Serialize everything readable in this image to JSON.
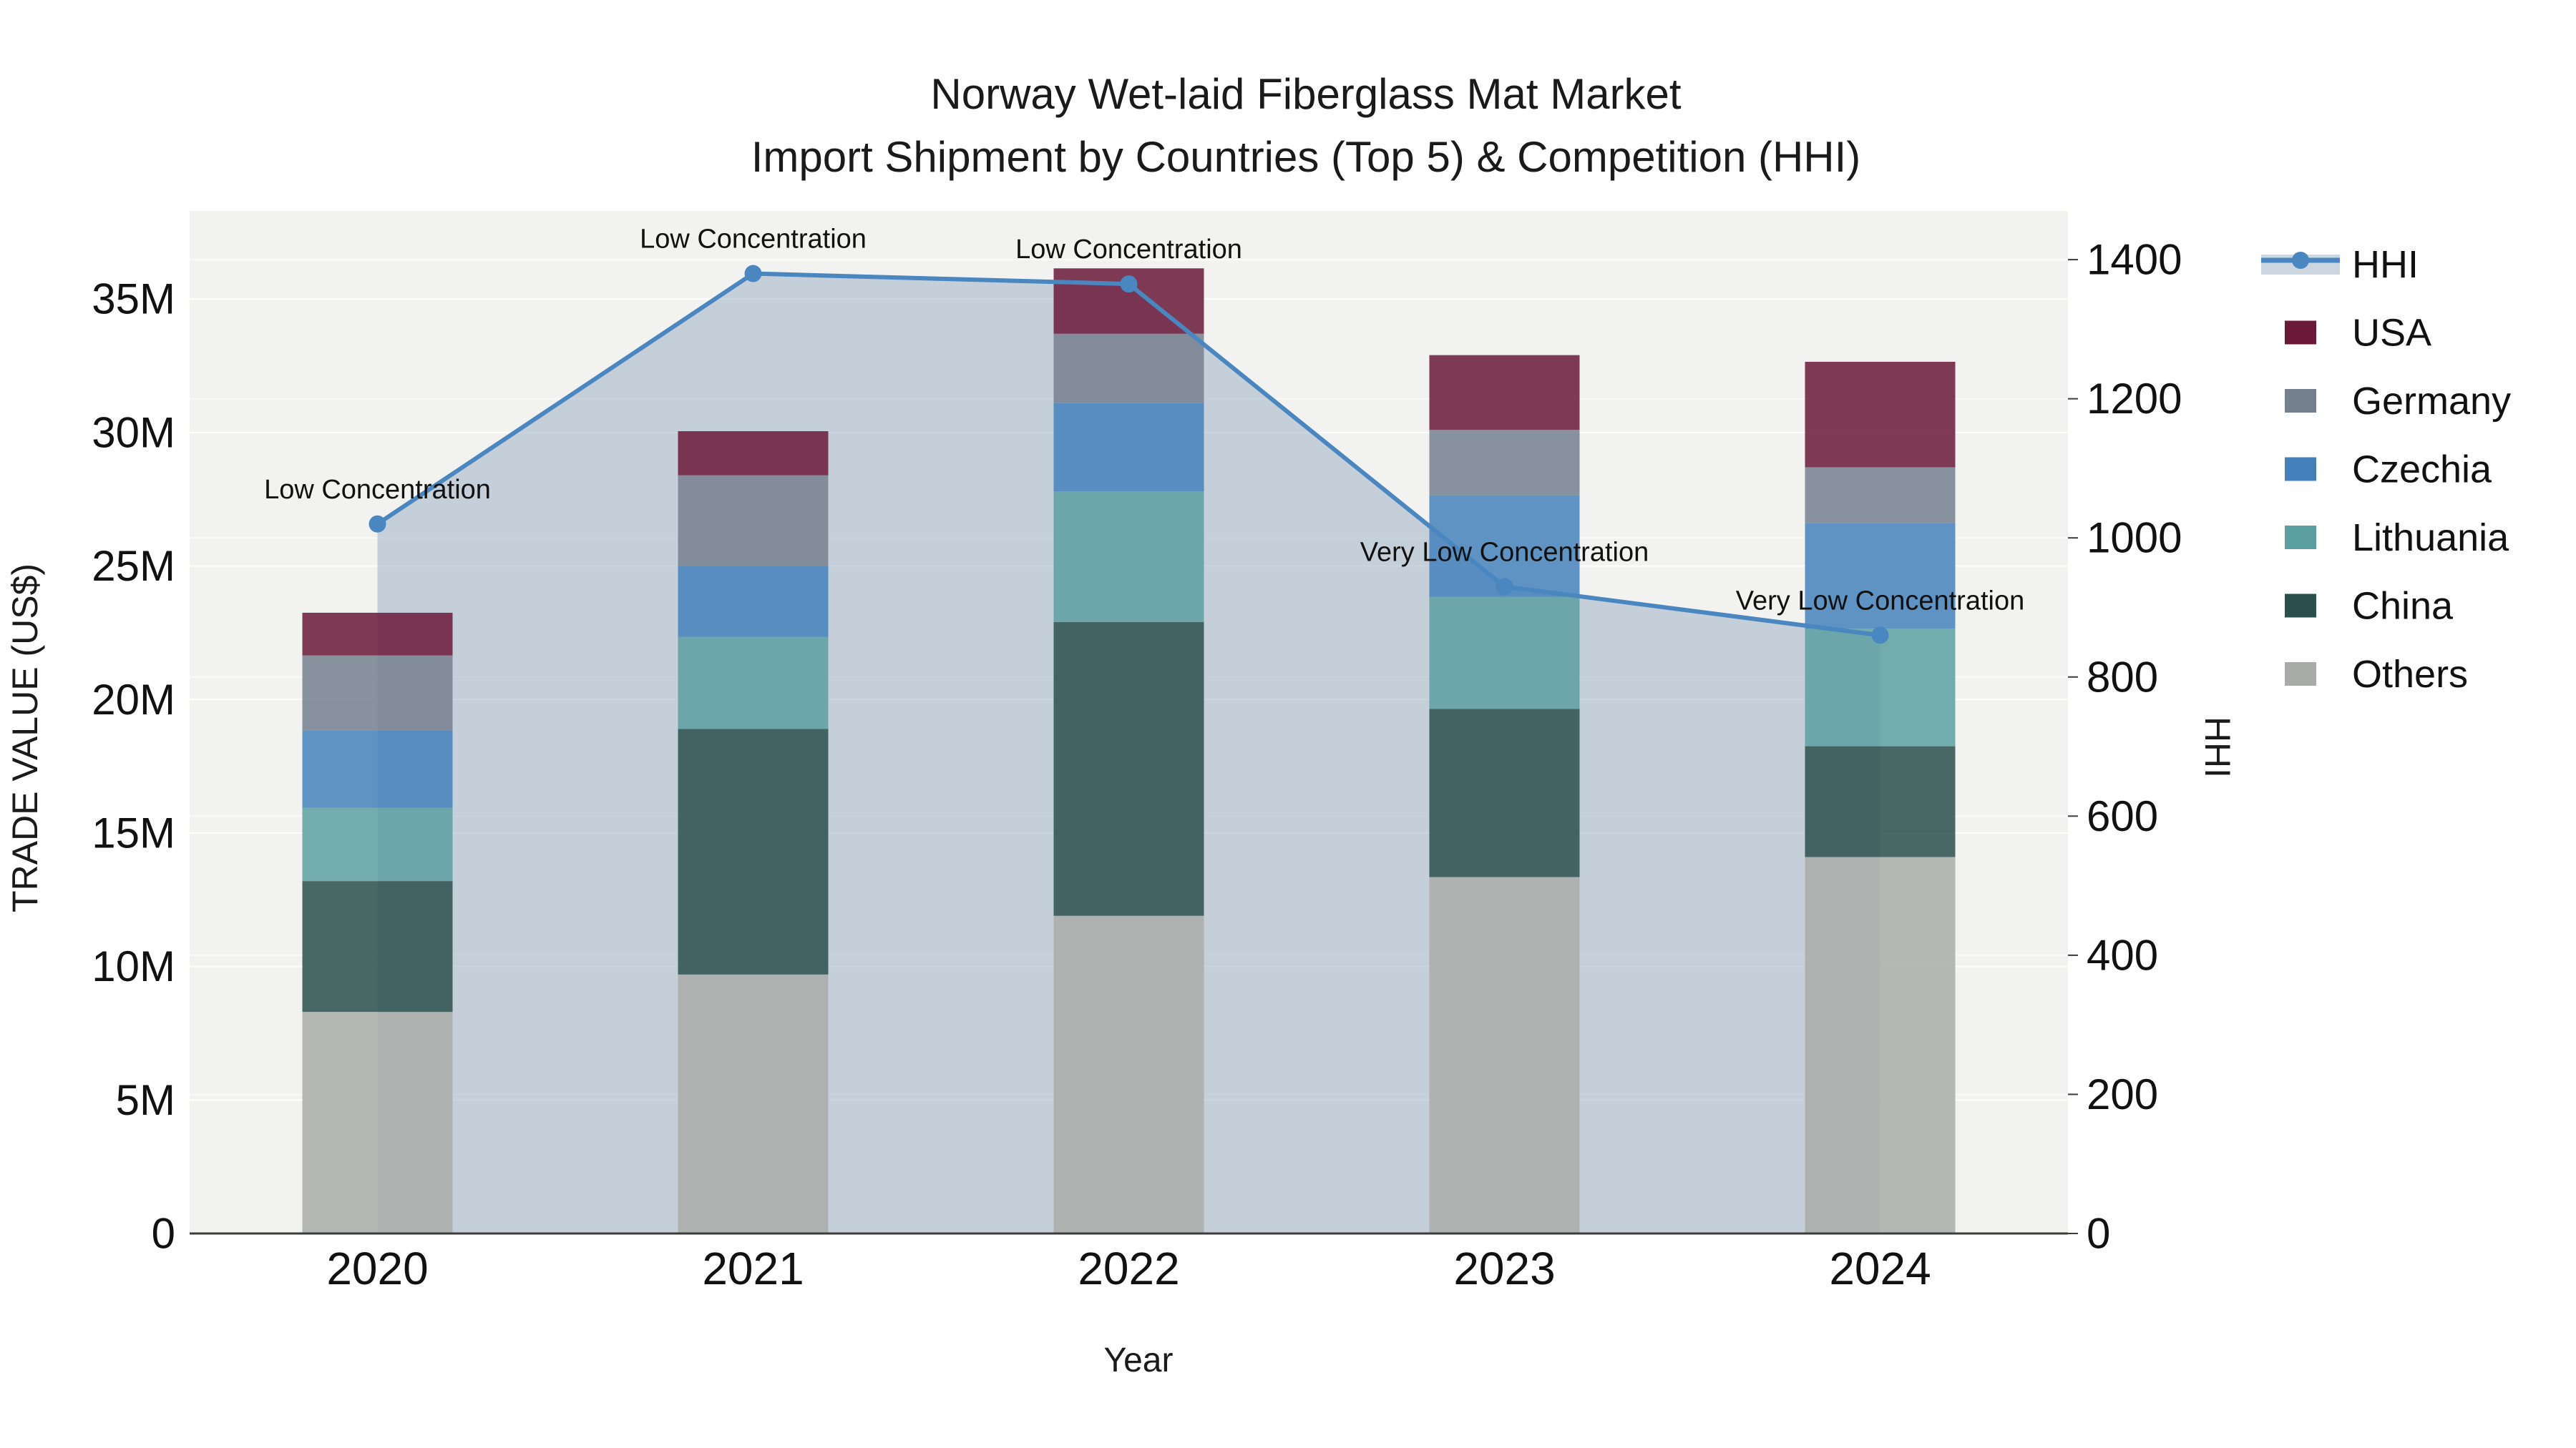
{
  "title": {
    "line1": "Norway Wet-laid Fiberglass Mat Market",
    "line2": "Import Shipment by Countries (Top 5) & Competition (HHI)"
  },
  "axes": {
    "x": {
      "title": "Year",
      "tick_labels": [
        "2020",
        "2021",
        "2022",
        "2023",
        "2024"
      ]
    },
    "y_left": {
      "title": "TRADE VALUE (US$)",
      "tick_labels": [
        "0",
        "5M",
        "10M",
        "15M",
        "20M",
        "25M",
        "30M",
        "35M"
      ],
      "tick_values_musd": [
        0,
        5,
        10,
        15,
        20,
        25,
        30,
        35
      ],
      "range_musd": [
        0,
        38.3
      ]
    },
    "y_right": {
      "title": "HHI",
      "tick_labels": [
        "0",
        "200",
        "400",
        "600",
        "800",
        "1000",
        "1200",
        "1400"
      ],
      "tick_values": [
        0,
        200,
        400,
        600,
        800,
        1000,
        1200,
        1400
      ],
      "range": [
        0,
        1470
      ]
    }
  },
  "legend": {
    "items": [
      {
        "label": "HHI",
        "type": "line",
        "color": "#4A86BF"
      },
      {
        "label": "USA",
        "type": "swatch",
        "color": "#6A1938"
      },
      {
        "label": "Germany",
        "type": "swatch",
        "color": "#75808F"
      },
      {
        "label": "Czechia",
        "type": "swatch",
        "color": "#4481BC"
      },
      {
        "label": "Lithuania",
        "type": "swatch",
        "color": "#5C9FA1"
      },
      {
        "label": "China",
        "type": "swatch",
        "color": "#2B4F4C"
      },
      {
        "label": "Others",
        "type": "swatch",
        "color": "#A9ABA7"
      }
    ]
  },
  "chart_data": {
    "type": "combo-stacked-bar-line",
    "categories": [
      "2020",
      "2021",
      "2022",
      "2023",
      "2024"
    ],
    "bar_unit": "USD millions",
    "bar_series": [
      {
        "name": "Others",
        "color": "#A9ABA7",
        "values": [
          8.3,
          9.7,
          11.9,
          13.35,
          14.1
        ]
      },
      {
        "name": "China",
        "color": "#2B4F4C",
        "values": [
          4.9,
          9.2,
          11.0,
          6.3,
          4.15
        ]
      },
      {
        "name": "Lithuania",
        "color": "#5C9FA1",
        "values": [
          2.75,
          3.45,
          4.9,
          4.2,
          4.4
        ]
      },
      {
        "name": "Czechia",
        "color": "#4481BC",
        "values": [
          2.9,
          2.65,
          3.3,
          3.8,
          3.95
        ]
      },
      {
        "name": "Germany",
        "color": "#75808F",
        "values": [
          2.8,
          3.4,
          2.6,
          2.45,
          2.1
        ]
      },
      {
        "name": "USA",
        "color": "#6A1938",
        "values": [
          1.6,
          1.65,
          2.45,
          2.8,
          3.95
        ]
      }
    ],
    "bar_totals_musd": [
      23.25,
      30.1,
      36.15,
      32.9,
      32.65
    ],
    "line_series": {
      "name": "HHI",
      "axis": "right",
      "color": "#4A86BF",
      "area_fill": true,
      "values": [
        1020,
        1380,
        1365,
        930,
        860
      ],
      "annotations": [
        "Low Concentration",
        "Low Concentration",
        "Low Concentration",
        "Very Low Concentration",
        "Very Low Concentration"
      ]
    },
    "layout_hints": {
      "legend_position": "right",
      "grid": "horizontal",
      "stack_order_bottom_to_top": [
        "Others",
        "China",
        "Lithuania",
        "Czechia",
        "Germany",
        "USA"
      ]
    }
  },
  "colors": {
    "background": "#ffffff",
    "plot_background": "#F2F3F1",
    "grid": "#FFFFFF",
    "axis_line": "#3C3C3C",
    "area_fill": "#8FA3BD",
    "text": "#111111"
  }
}
